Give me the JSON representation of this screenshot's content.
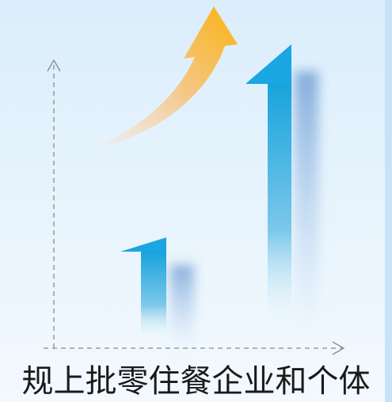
{
  "caption": "规上批零住餐企业和个体"
}
